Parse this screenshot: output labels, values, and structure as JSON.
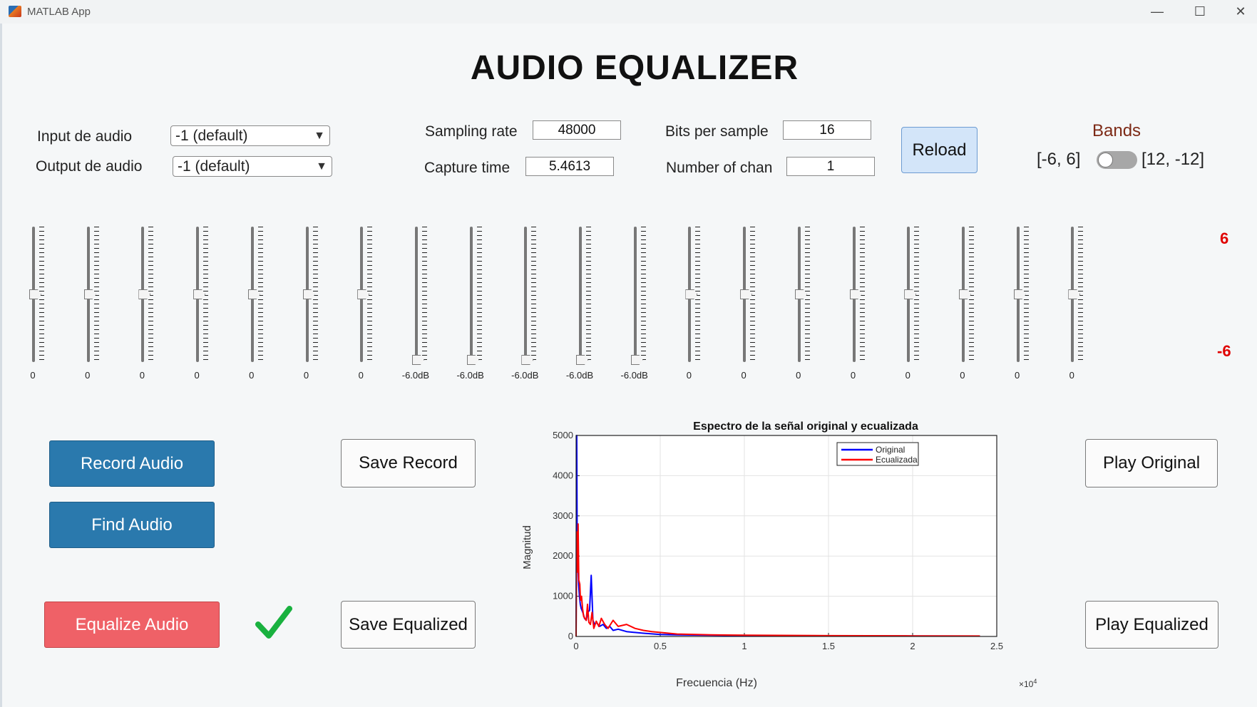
{
  "window": {
    "title": "MATLAB App",
    "minimize": "—",
    "maximize": "☐",
    "close": "✕"
  },
  "heading": "AUDIO EQUALIZER",
  "io": {
    "input_label": "Input de audio",
    "input_value": "-1 (default)",
    "output_label": "Output de audio",
    "output_value": "-1 (default)"
  },
  "params": {
    "sampling_rate_label": "Sampling rate",
    "sampling_rate": "48000",
    "capture_time_label": "Capture time",
    "capture_time": "5.4613",
    "bits_label": "Bits per sample",
    "bits": "16",
    "channels_label": "Number of chan",
    "channels": "1"
  },
  "reload_label": "Reload",
  "bands": {
    "title": "Bands",
    "left_option": "[-6, 6]",
    "right_option": "[12, -12]",
    "toggle_on": false
  },
  "sliders": {
    "max_label": "6",
    "min_label": "-6",
    "range": [
      -6,
      6
    ],
    "items": [
      {
        "value": 0,
        "label": "0"
      },
      {
        "value": 0,
        "label": "0"
      },
      {
        "value": 0,
        "label": "0"
      },
      {
        "value": 0,
        "label": "0"
      },
      {
        "value": 0,
        "label": "0"
      },
      {
        "value": 0,
        "label": "0"
      },
      {
        "value": 0,
        "label": "0"
      },
      {
        "value": -6,
        "label": "-6.0dB"
      },
      {
        "value": -6,
        "label": "-6.0dB"
      },
      {
        "value": -6,
        "label": "-6.0dB"
      },
      {
        "value": -6,
        "label": "-6.0dB"
      },
      {
        "value": -6,
        "label": "-6.0dB"
      },
      {
        "value": 0,
        "label": "0"
      },
      {
        "value": 0,
        "label": "0"
      },
      {
        "value": 0,
        "label": "0"
      },
      {
        "value": 0,
        "label": "0"
      },
      {
        "value": 0,
        "label": "0"
      },
      {
        "value": 0,
        "label": "0"
      },
      {
        "value": 0,
        "label": "0"
      },
      {
        "value": 0,
        "label": "0"
      }
    ]
  },
  "buttons": {
    "record": "Record Audio",
    "find": "Find Audio",
    "equalize": "Equalize Audio",
    "save_record": "Save Record",
    "save_equalized": "Save Equalized",
    "play_original": "Play Original",
    "play_equalized": "Play Equalized"
  },
  "colors": {
    "blue_button": "#2a79ad",
    "red_button": "#ef6167",
    "check": "#19b13f",
    "series_original": "#0000ff",
    "series_equalized": "#ff0000",
    "bands_title": "#7d2a16",
    "scale_labels": "#e00000"
  },
  "chart_data": {
    "type": "line",
    "title": "Espectro de la señal original y ecualizada",
    "xlabel": "Frecuencia (Hz)",
    "ylabel": "Magnitud",
    "x_exponent_label": "×10",
    "x_exponent_power": "4",
    "xlim": [
      0,
      25000
    ],
    "ylim": [
      0,
      5000
    ],
    "xticks": [
      0,
      5000,
      10000,
      15000,
      20000,
      25000
    ],
    "xtick_labels": [
      "0",
      "0.5",
      "1",
      "1.5",
      "2",
      "2.5"
    ],
    "yticks": [
      0,
      1000,
      2000,
      3000,
      4000,
      5000
    ],
    "ytick_labels": [
      "0",
      "1000",
      "2000",
      "3000",
      "4000",
      "5000"
    ],
    "grid": true,
    "legend_position": "top-right",
    "series": [
      {
        "name": "Original",
        "color": "#0000ff",
        "x": [
          0,
          40,
          60,
          100,
          150,
          200,
          250,
          300,
          400,
          500,
          600,
          700,
          800,
          900,
          1000,
          1100,
          1200,
          1400,
          1600,
          1800,
          2000,
          2200,
          2500,
          3000,
          3500,
          4000,
          5000,
          6000,
          8000,
          10000,
          15000,
          20000,
          24000
        ],
        "y": [
          0,
          5000,
          2700,
          1900,
          1300,
          1000,
          800,
          700,
          600,
          450,
          400,
          600,
          650,
          1520,
          400,
          300,
          350,
          250,
          300,
          200,
          250,
          150,
          180,
          120,
          100,
          80,
          50,
          40,
          30,
          20,
          15,
          10,
          8
        ]
      },
      {
        "name": "Ecualizada",
        "color": "#ff0000",
        "x": [
          0,
          40,
          80,
          120,
          160,
          220,
          260,
          320,
          380,
          450,
          520,
          600,
          680,
          760,
          850,
          950,
          1050,
          1200,
          1350,
          1500,
          1700,
          1900,
          2200,
          2500,
          3000,
          3500,
          4000,
          4500,
          5000,
          6000,
          8000,
          10000,
          15000,
          20000,
          24000
        ],
        "y": [
          0,
          2600,
          1600,
          2800,
          1400,
          1300,
          900,
          1000,
          700,
          500,
          450,
          400,
          800,
          350,
          300,
          600,
          200,
          380,
          250,
          450,
          300,
          200,
          400,
          250,
          300,
          200,
          150,
          120,
          100,
          60,
          40,
          30,
          20,
          15,
          10
        ]
      }
    ]
  }
}
